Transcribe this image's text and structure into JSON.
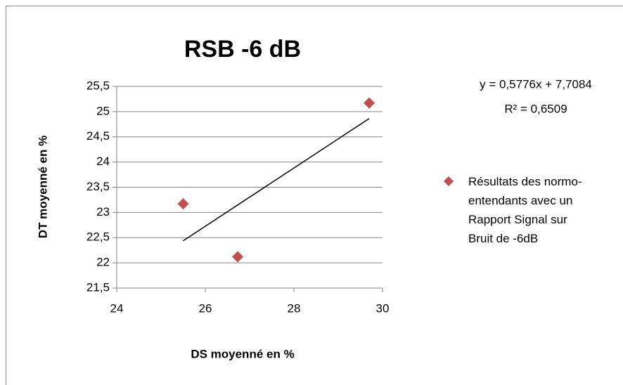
{
  "chart_data": {
    "type": "scatter",
    "title": "RSB -6 dB",
    "x_label": "DS moyenné en %",
    "y_label": "DT moyenné en %",
    "series": [
      {
        "name": "Résultats des normo-entendants avec un Rapport Signal sur Bruit de -6dB",
        "color": "#c0504d",
        "x": [
          25.5,
          26.73,
          29.7
        ],
        "values": [
          23.17,
          22.12,
          25.17
        ]
      }
    ],
    "trendline": {
      "label": "y = 0,5776x + 7,7084",
      "r2_label": "R² = 0,6509",
      "slope": 0.5776,
      "intercept": 7.7084,
      "color": "#000000"
    },
    "xlim": [
      24,
      30
    ],
    "xticks": [
      24,
      26,
      28,
      30
    ],
    "ylim": [
      21.5,
      25.5
    ],
    "yticks": [
      {
        "value": 21.5,
        "label": "21,5"
      },
      22,
      {
        "value": 22.5,
        "label": "22,5"
      },
      23,
      {
        "value": 23.5,
        "label": "23,5"
      },
      24,
      {
        "value": 24.5,
        "label": "24,5"
      },
      25,
      {
        "value": 25.5,
        "label": "25,5"
      }
    ],
    "grid": true
  }
}
